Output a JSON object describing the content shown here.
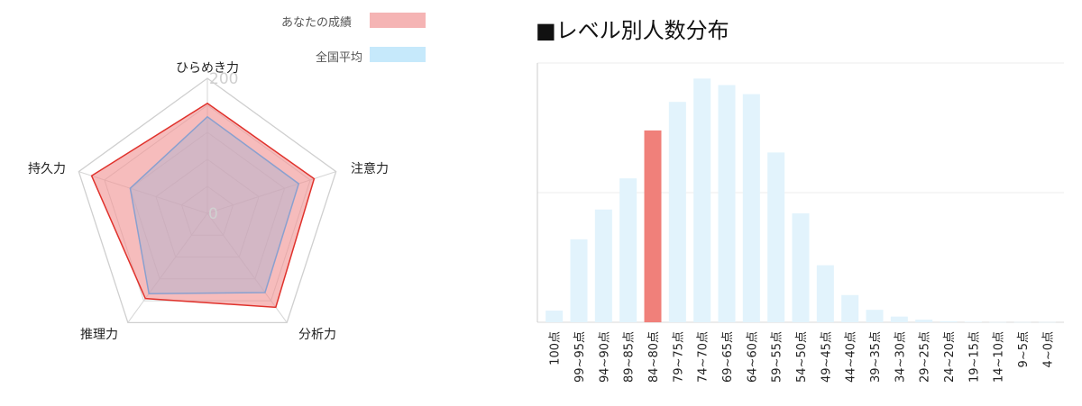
{
  "legend": {
    "you_label": "あなたの成績",
    "avg_label": "全国平均",
    "you_color": "#f5a3a3",
    "avg_color": "#c6e9fb"
  },
  "chart_data": [
    {
      "type": "radar",
      "title": "",
      "axes": [
        "ひらめき力",
        "注意力",
        "分析力",
        "推理力",
        "持久力"
      ],
      "range": [
        0,
        200
      ],
      "tick_labels": [
        "200",
        "0"
      ],
      "series": [
        {
          "name": "あなたの成績",
          "values": [
            163,
            166,
            172,
            156,
            180
          ],
          "stroke": "#e0322c",
          "fill": "#f08f8f"
        },
        {
          "name": "全国平均",
          "values": [
            143,
            142,
            145,
            147,
            120
          ],
          "stroke": "#8aa0cf",
          "fill": "#b7b2cc"
        }
      ]
    },
    {
      "type": "bar",
      "title": "■レベル別人数分布",
      "categories": [
        "100点",
        "99~95点",
        "94~90点",
        "89~85点",
        "84~80点",
        "79~75点",
        "74~70点",
        "69~65点",
        "64~60点",
        "59~55点",
        "54~50点",
        "49~45点",
        "44~40点",
        "39~35点",
        "34~30点",
        "29~25点",
        "24~20点",
        "19~15点",
        "14~10点",
        "9~5点",
        "4~0点"
      ],
      "values": [
        4.5,
        32,
        43.5,
        55.5,
        74,
        85,
        94,
        91.5,
        88,
        65.5,
        42,
        22,
        10.5,
        4.8,
        2.2,
        1.0,
        0.4,
        0.2,
        0.1,
        0.1,
        0.1
      ],
      "highlight_index": 4,
      "bar_color": "#e2f3fc",
      "highlight_color": "#f0807a",
      "ylim": [
        0,
        100
      ],
      "grid": true,
      "xlabel": "",
      "ylabel": ""
    }
  ]
}
